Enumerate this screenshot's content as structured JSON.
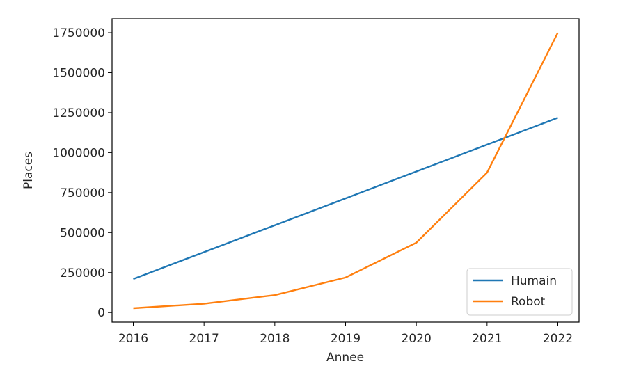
{
  "chart_data": {
    "type": "line",
    "title": "",
    "xlabel": "Annee",
    "ylabel": "Places",
    "x": [
      2016,
      2017,
      2018,
      2019,
      2020,
      2021,
      2022
    ],
    "series": [
      {
        "name": "Humain",
        "color": "#1f77b4",
        "values": [
          210000,
          378000,
          546000,
          714000,
          882000,
          1050000,
          1218000
        ]
      },
      {
        "name": "Robot",
        "color": "#ff7f0e",
        "values": [
          27000,
          55000,
          109000,
          219000,
          437000,
          875000,
          1750000
        ]
      }
    ],
    "xticks": [
      2016,
      2017,
      2018,
      2019,
      2020,
      2021,
      2022
    ],
    "yticks": [
      0,
      250000,
      500000,
      750000,
      1000000,
      1250000,
      1500000,
      1750000
    ],
    "xlim": [
      2015.7,
      2022.3
    ],
    "ylim": [
      -60000,
      1837000
    ],
    "grid": false,
    "legend_position": "lower right"
  }
}
